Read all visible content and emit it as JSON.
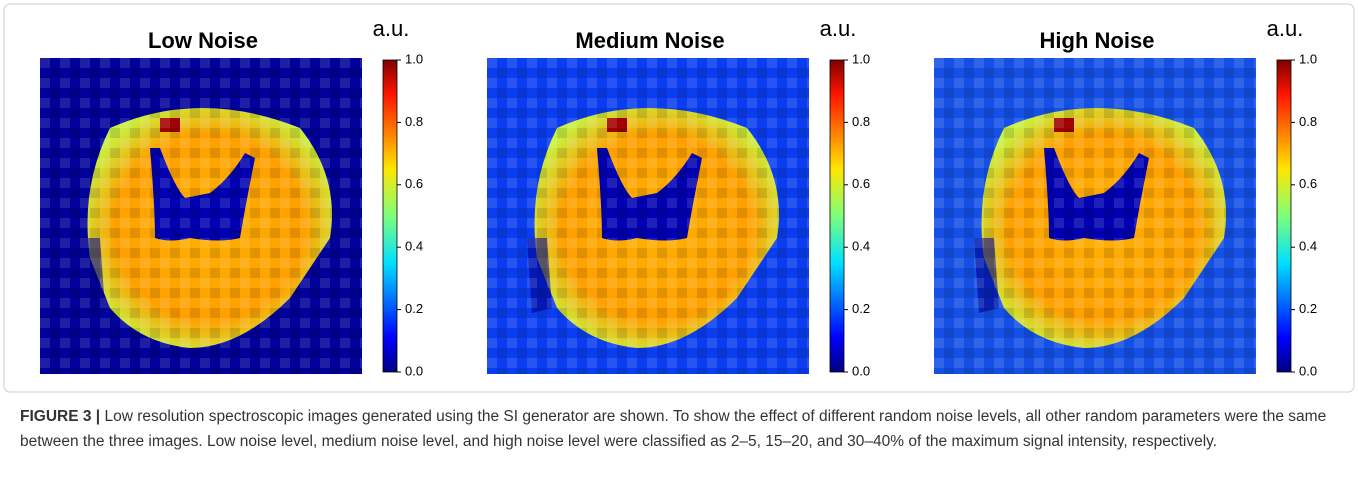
{
  "figure": {
    "panels": [
      {
        "title": "Low Noise",
        "colorbar": {
          "label": "a.u.",
          "lim": [
            0,
            1
          ],
          "ticks": [
            {
              "value": 0,
              "label": "0.0"
            },
            0.2,
            0.4,
            0.6,
            0.8,
            {
              "value": 1,
              "label": "1.0"
            }
          ],
          "colormap": "jet"
        }
      },
      {
        "title": "Medium Noise",
        "colorbar": {
          "label": "a.u.",
          "lim": [
            0,
            1
          ],
          "ticks": [
            {
              "value": 0,
              "label": "0.0"
            },
            0.2,
            0.4,
            0.6,
            0.8,
            {
              "value": 1,
              "label": "1.0"
            }
          ],
          "colormap": "jet"
        }
      },
      {
        "title": "High Noise",
        "colorbar": {
          "label": "a.u.",
          "lim": [
            0,
            1
          ],
          "ticks": [
            {
              "value": 0,
              "label": "0.0"
            },
            0.2,
            0.4,
            0.6,
            0.8,
            {
              "value": 1,
              "label": "1.0"
            }
          ],
          "colormap": "jet"
        }
      }
    ],
    "caption": {
      "label": "FIGURE 3 |",
      "text": "Low resolution spectroscopic images generated using the SI generator are shown. To show the effect of different random noise levels, all other random parameters were the same between the three images. Low noise level, medium noise level, and high noise level were classified as 2–5, 15–20, and 30–40% of the maximum signal intensity, respectively."
    }
  }
}
